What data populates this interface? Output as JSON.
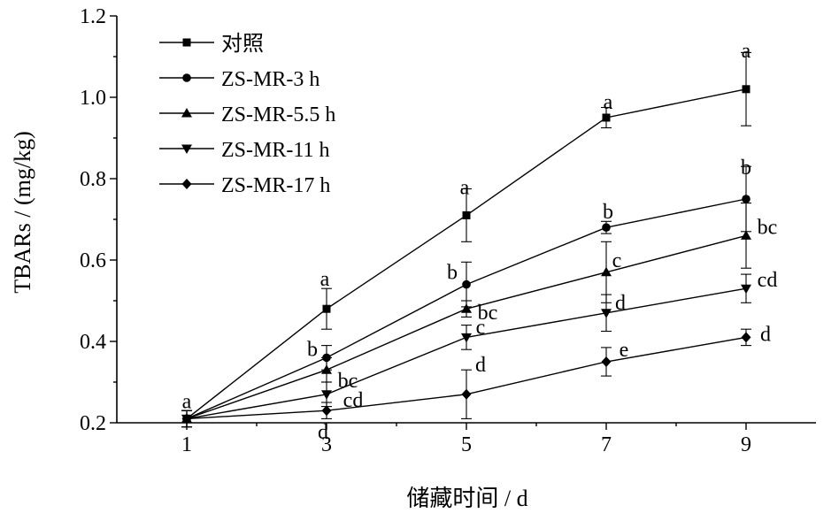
{
  "chart_data": {
    "type": "line",
    "title": "",
    "xlabel": "储藏时间 / d",
    "ylabel": "TBARs / (mg/kg)",
    "x": [
      1,
      3,
      5,
      7,
      9
    ],
    "xlim": [
      0,
      10
    ],
    "ylim": [
      0.2,
      1.2
    ],
    "yticks": [
      "0.2",
      "0.4",
      "0.6",
      "0.8",
      "1.0",
      "1.2"
    ],
    "xticks": [
      "1",
      "3",
      "5",
      "7",
      "9"
    ],
    "grid": false,
    "legend_position": "top-left",
    "series": [
      {
        "name": "对照",
        "marker": "square",
        "values": [
          0.21,
          0.48,
          0.71,
          0.95,
          1.02
        ],
        "errors": [
          0.02,
          0.05,
          0.065,
          0.025,
          0.09
        ],
        "labels": [
          "a",
          "a",
          "a",
          "a",
          "a"
        ]
      },
      {
        "name": "ZS-MR-3 h",
        "marker": "circle",
        "values": [
          0.21,
          0.36,
          0.54,
          0.68,
          0.75
        ],
        "errors": [
          0.02,
          0.03,
          0.055,
          0.015,
          0.08
        ],
        "labels": [
          "",
          "b",
          "b",
          "b",
          "b"
        ]
      },
      {
        "name": "ZS-MR-5.5 h",
        "marker": "triangle-up",
        "values": [
          0.21,
          0.33,
          0.48,
          0.57,
          0.66
        ],
        "errors": [
          0.02,
          0.03,
          0.02,
          0.075,
          0.08
        ],
        "labels": [
          "",
          "bc",
          "bc",
          "c",
          "bc"
        ]
      },
      {
        "name": "ZS-MR-11 h",
        "marker": "triangle-down",
        "values": [
          0.21,
          0.27,
          0.41,
          0.47,
          0.53
        ],
        "errors": [
          0.02,
          0.03,
          0.03,
          0.045,
          0.035
        ],
        "labels": [
          "",
          "cd",
          "c",
          "d",
          "cd"
        ]
      },
      {
        "name": "ZS-MR-17 h",
        "marker": "diamond",
        "values": [
          0.21,
          0.23,
          0.27,
          0.35,
          0.41
        ],
        "errors": [
          0.02,
          0.02,
          0.06,
          0.035,
          0.02
        ],
        "labels": [
          "",
          "d",
          "d",
          "e",
          "d"
        ]
      }
    ]
  }
}
